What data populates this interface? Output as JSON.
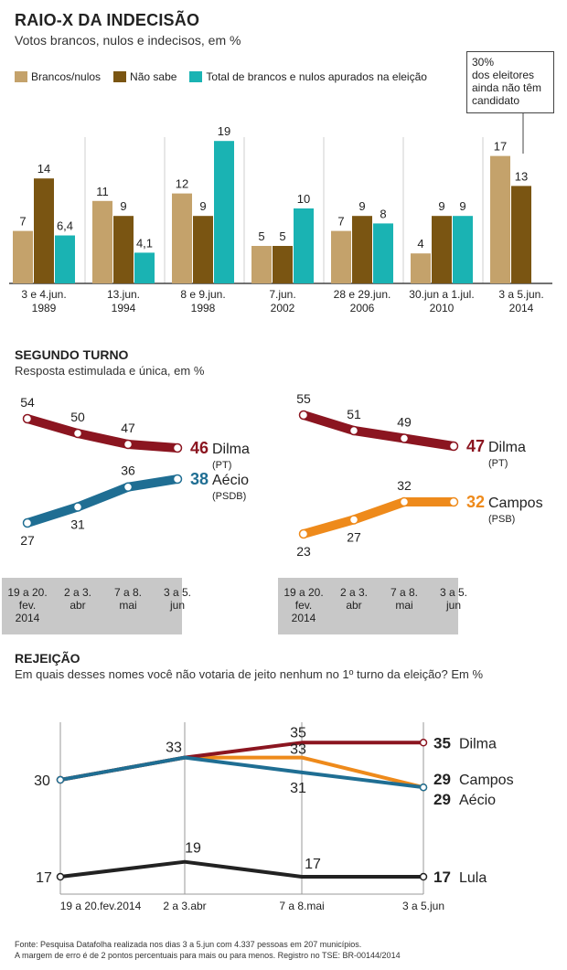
{
  "header": {
    "title": "RAIO-X DA INDECISÃO",
    "subtitle": "Votos brancos, nulos e indecisos, em %"
  },
  "colors": {
    "brancos": "#c4a26b",
    "nao_sabe": "#7a5512",
    "total": "#1ab3b3",
    "dilma": "#8b1520",
    "aecio": "#1f6e93",
    "campos": "#ee8a1b",
    "lula": "#222222",
    "axis_box": "#c8c8c8"
  },
  "callout": {
    "text_pct": "30%",
    "text_rest": "dos eleitores ainda não têm candidato"
  },
  "section2": {
    "title": "SEGUNDO TURNO",
    "subtitle": "Resposta estimulada e única, em %"
  },
  "section3": {
    "title": "REJEIÇÃO",
    "subtitle": "Em quais desses nomes você não votaria de jeito nenhum no 1º turno da eleição? Em %"
  },
  "footer": {
    "line1": "Fonte: Pesquisa Datafolha realizada nos dias 3 a 5.jun com 4.337 pessoas em 207 municípios.",
    "line2": "A margem de erro é de 2 pontos percentuais para mais ou para menos. Registro no TSE: BR-00144/2014"
  },
  "chart_data": [
    {
      "type": "bar",
      "title": "RAIO-X DA INDECISÃO",
      "subtitle": "Votos brancos, nulos e indecisos, em %",
      "categories": [
        [
          "3 e 4.jun.",
          "1989"
        ],
        [
          "13.jun.",
          "1994"
        ],
        [
          "8 e 9.jun.",
          "1998"
        ],
        [
          "7.jun.",
          "2002"
        ],
        [
          "28 e 29.jun.",
          "2006"
        ],
        [
          "30.jun a 1.jul.",
          "2010"
        ],
        [
          "3 a 5.jun.",
          "2014"
        ]
      ],
      "series": [
        {
          "name": "Brancos/nulos",
          "values": [
            7,
            11,
            12,
            5,
            7,
            4,
            17
          ],
          "labels": [
            "7",
            "11",
            "12",
            "5",
            "7",
            "4",
            "17"
          ]
        },
        {
          "name": "Não sabe",
          "values": [
            14,
            9,
            9,
            5,
            9,
            9,
            13
          ],
          "labels": [
            "14",
            "9",
            "9",
            "5",
            "9",
            "9",
            "13"
          ]
        },
        {
          "name": "Total de brancos e nulos apurados na eleição",
          "values": [
            6.4,
            4.1,
            19,
            10,
            8,
            9,
            null
          ],
          "labels": [
            "6,4",
            "4,1",
            "19",
            "10",
            "8",
            "9",
            ""
          ]
        }
      ]
    },
    {
      "type": "line",
      "x": [
        "19 a 20. fev. 2014",
        "2 a 3. abr",
        "7 a 8. mai",
        "3 a 5. jun"
      ],
      "series": [
        {
          "name": "Dilma",
          "party": "(PT)",
          "values": [
            54,
            50,
            47,
            46
          ]
        },
        {
          "name": "Aécio",
          "party": "(PSDB)",
          "values": [
            27,
            31,
            36,
            38
          ]
        }
      ]
    },
    {
      "type": "line",
      "x": [
        "19 a 20. fev. 2014",
        "2 a 3. abr",
        "7 a 8. mai",
        "3 a 5. jun"
      ],
      "series": [
        {
          "name": "Dilma",
          "party": "(PT)",
          "values": [
            55,
            51,
            49,
            47
          ]
        },
        {
          "name": "Campos",
          "party": "(PSB)",
          "values": [
            23,
            27,
            32,
            32
          ]
        }
      ]
    },
    {
      "type": "line",
      "title": "REJEIÇÃO",
      "x": [
        "19 a 20.fev.2014",
        "2 a 3.abr",
        "7 a 8.mai",
        "3 a 5.jun"
      ],
      "series": [
        {
          "name": "Dilma",
          "values": [
            30,
            33,
            35,
            35
          ]
        },
        {
          "name": "Campos",
          "values": [
            30,
            33,
            33,
            29
          ]
        },
        {
          "name": "Aécio",
          "values": [
            30,
            33,
            31,
            29
          ]
        },
        {
          "name": "Lula",
          "values": [
            17,
            19,
            17,
            17
          ]
        }
      ],
      "value_labels": {
        "start": "30",
        "peak": "33",
        "dilma_mai": "35",
        "campos_mai": "33",
        "aecio_mai": "31",
        "lula_start": "17",
        "lula_abr": "19",
        "lula_mai": "17"
      }
    }
  ]
}
